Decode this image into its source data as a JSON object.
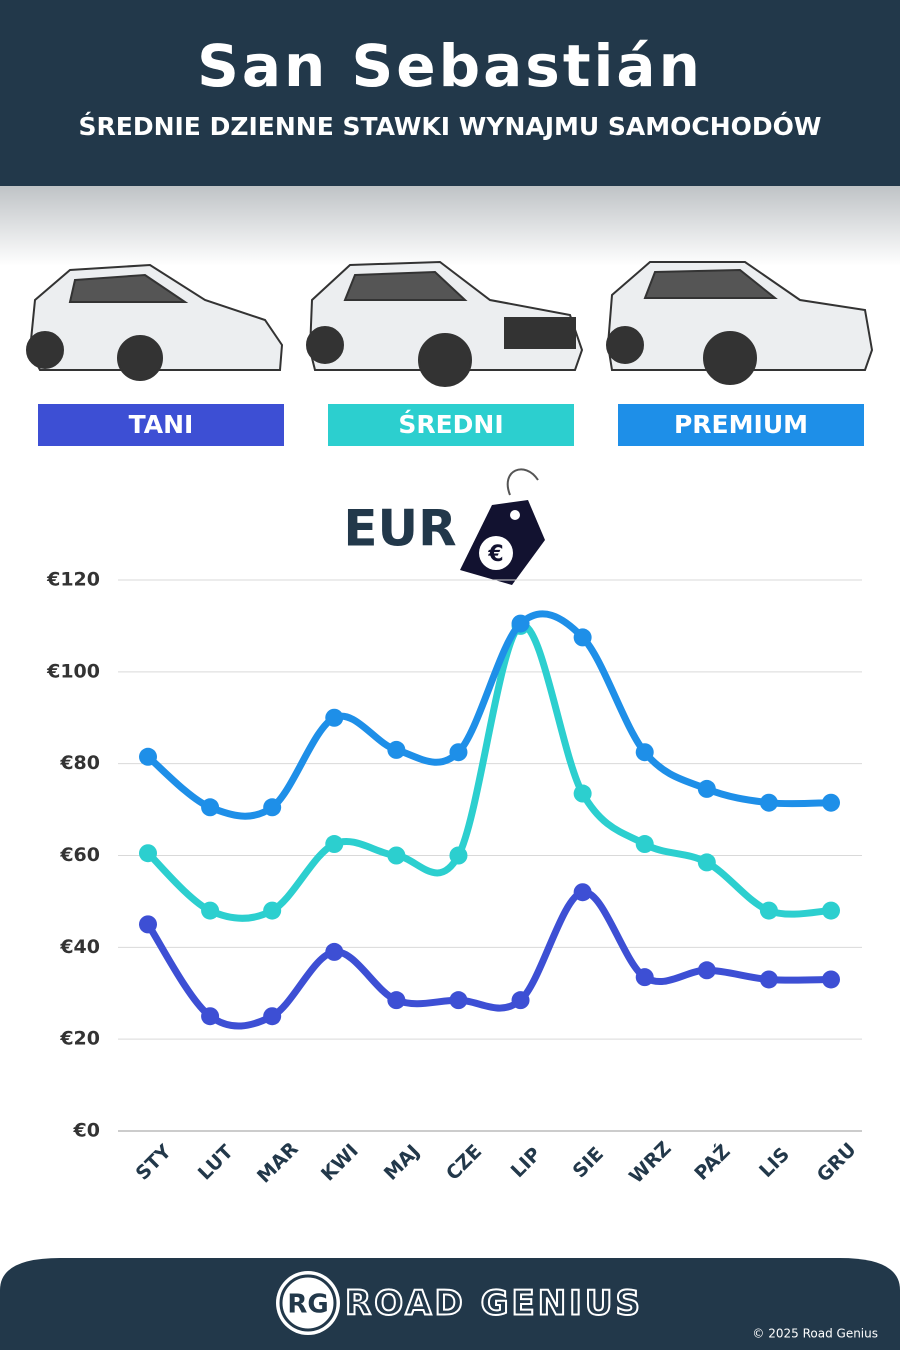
{
  "header": {
    "title": "San Sebastián",
    "subtitle": "ŚREDNIE DZIENNE STAWKI WYNAJMU SAMOCHODÓW"
  },
  "chart_data": {
    "type": "line",
    "unit_label": "EUR",
    "categories": [
      "STY",
      "LUT",
      "MAR",
      "KWI",
      "MAJ",
      "CZE",
      "LIP",
      "SIE",
      "WRZ",
      "PAŹ",
      "LIS",
      "GRU"
    ],
    "series": [
      {
        "name": "TANI",
        "color": "#3d4fd4",
        "values": [
          45,
          25,
          25,
          39,
          28.5,
          28.5,
          28.5,
          52,
          33.5,
          35,
          33,
          33
        ]
      },
      {
        "name": "ŚREDNI",
        "color": "#2ccfcf",
        "values": [
          60.5,
          48,
          48,
          62.5,
          60,
          60,
          110,
          73.5,
          62.5,
          58.5,
          48,
          48
        ]
      },
      {
        "name": "PREMIUM",
        "color": "#1e8fe8",
        "values": [
          81.5,
          70.5,
          70.5,
          90,
          83,
          82.5,
          110.5,
          107.5,
          82.5,
          74.5,
          71.5,
          71.5
        ]
      }
    ],
    "ylim": [
      0,
      120
    ],
    "yticks": [
      {
        "value": 0,
        "label": "€0"
      },
      {
        "value": 20,
        "label": "€20"
      },
      {
        "value": 40,
        "label": "€40"
      },
      {
        "value": 60,
        "label": "€60"
      },
      {
        "value": 80,
        "label": "€80"
      },
      {
        "value": 100,
        "label": "€100"
      },
      {
        "value": 120,
        "label": "€120"
      }
    ],
    "grid": true
  },
  "footer": {
    "logo": "RG",
    "brand": "ROAD GENIUS",
    "copyright": "© 2025 Road Genius"
  }
}
